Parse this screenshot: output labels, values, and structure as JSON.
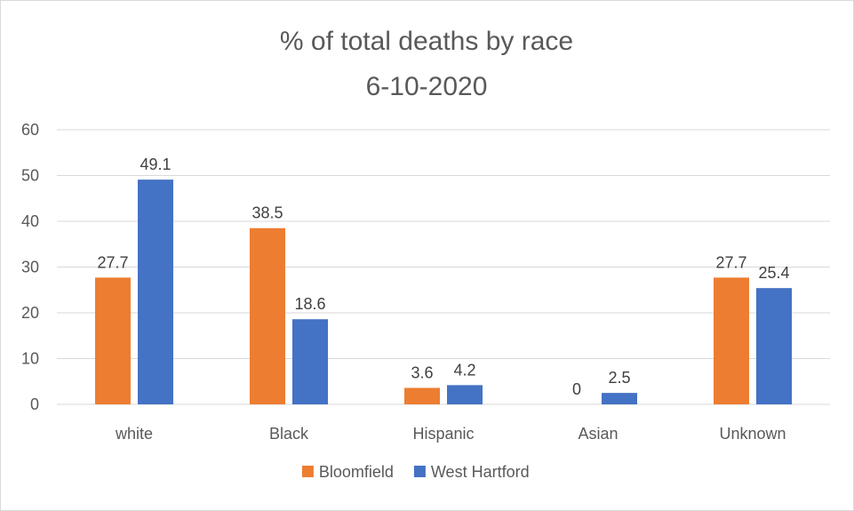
{
  "chart_data": {
    "type": "bar",
    "title": "% of total deaths by race",
    "subtitle": "6-10-2020",
    "categories": [
      "white",
      "Black",
      "Hispanic",
      "Asian",
      "Unknown"
    ],
    "series": [
      {
        "name": "Bloomfield",
        "color": "#ED7D31",
        "values": [
          27.7,
          38.5,
          3.6,
          0,
          27.7
        ]
      },
      {
        "name": "West Hartford",
        "color": "#4472C4",
        "values": [
          49.1,
          18.6,
          4.2,
          2.5,
          25.4
        ]
      }
    ],
    "ylim": [
      0,
      60
    ],
    "yticks": [
      0,
      10,
      20,
      30,
      40,
      50,
      60
    ],
    "grid": true,
    "legend_position": "bottom",
    "data_labels": true
  }
}
